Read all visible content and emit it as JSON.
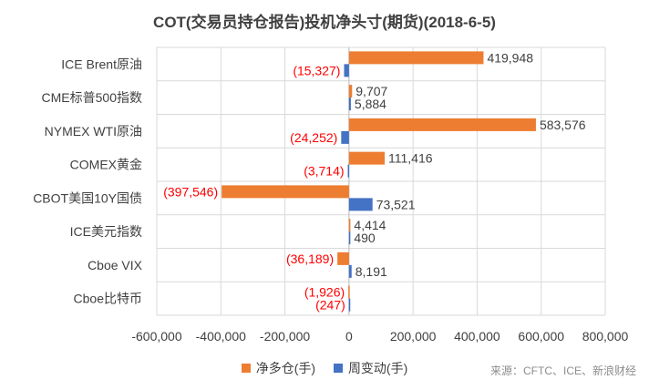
{
  "chart_data": {
    "type": "bar",
    "orientation": "horizontal",
    "title": "COT(交易员持仓报告)投机净头寸(期货)(2018-6-5)",
    "categories": [
      "ICE Brent原油",
      "CME标普500指数",
      "NYMEX WTI原油",
      "COMEX黄金",
      "CBOT美国10Y国债",
      "ICE美元指数",
      "Cboe VIX",
      "Cboe比特币"
    ],
    "series": [
      {
        "name": "净多仓(手)",
        "color": "#ED7D31",
        "values": [
          419948,
          9707,
          583576,
          111416,
          -397546,
          4414,
          -36189,
          -1926
        ],
        "labels": [
          "419,948",
          "9,707",
          "583,576",
          "111,416",
          "(397,546)",
          "4,414",
          "(36,189)",
          "(1,926)"
        ]
      },
      {
        "name": "周变动(手)",
        "color": "#4472C4",
        "values": [
          -15327,
          5884,
          -24252,
          -3714,
          73521,
          490,
          8191,
          -247
        ],
        "labels": [
          "(15,327)",
          "5,884",
          "(24,252)",
          "(3,714)",
          "73,521",
          "490",
          "8,191",
          "(247)"
        ]
      }
    ],
    "xlim": [
      -600000,
      800000
    ],
    "xticks": [
      -600000,
      -400000,
      -200000,
      0,
      200000,
      400000,
      600000,
      800000
    ],
    "xtick_labels": [
      "-600,000",
      "-400,000",
      "-200,000",
      "0",
      "200,000",
      "400,000",
      "600,000",
      "800,000"
    ],
    "grid": "vertical",
    "legend": "bottom",
    "positive_label_color": "#404040",
    "negative_label_color": "#FF0000",
    "source": "来源：CFTC、ICE、新浪财经"
  }
}
